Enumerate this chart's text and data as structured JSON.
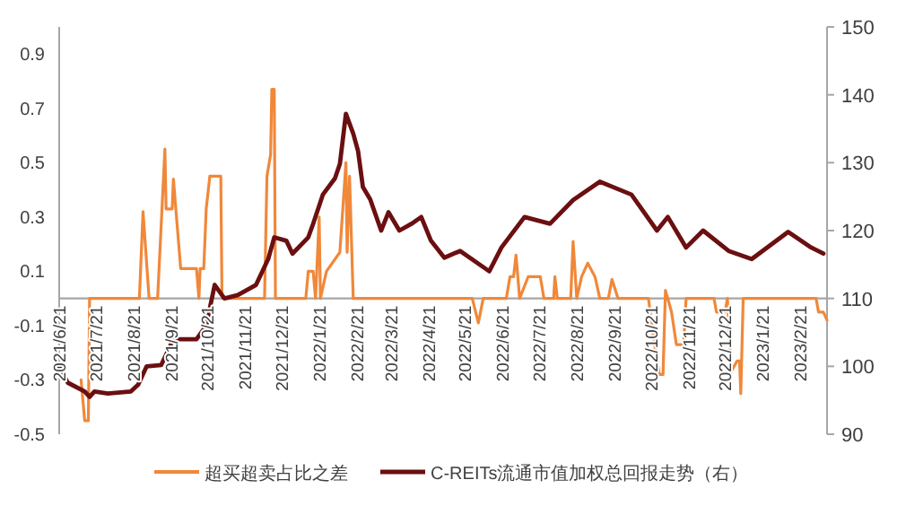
{
  "chart_data": {
    "type": "line",
    "legend": "bottom",
    "xlim": [
      "2021-06-21",
      "2023-03-15"
    ],
    "xticks": [
      {
        "value": "2021-06-21",
        "label": "2021/6/21"
      },
      {
        "value": "2021-07-21",
        "label": "2021/7/21"
      },
      {
        "value": "2021-08-21",
        "label": "2021/8/21"
      },
      {
        "value": "2021-09-21",
        "label": "2021/9/21"
      },
      {
        "value": "2021-10-21",
        "label": "2021/10/21"
      },
      {
        "value": "2021-11-21",
        "label": "2021/11/21"
      },
      {
        "value": "2021-12-21",
        "label": "2021/12/21"
      },
      {
        "value": "2022-01-21",
        "label": "2022/1/21"
      },
      {
        "value": "2022-02-21",
        "label": "2022/2/21"
      },
      {
        "value": "2022-03-21",
        "label": "2022/3/21"
      },
      {
        "value": "2022-04-21",
        "label": "2022/4/21"
      },
      {
        "value": "2022-05-21",
        "label": "2022/5/21"
      },
      {
        "value": "2022-06-21",
        "label": "2022/6/21"
      },
      {
        "value": "2022-07-21",
        "label": "2022/7/21"
      },
      {
        "value": "2022-08-21",
        "label": "2022/8/21"
      },
      {
        "value": "2022-09-21",
        "label": "2022/9/21"
      },
      {
        "value": "2022-10-21",
        "label": "2022/10/21"
      },
      {
        "value": "2022-11-21",
        "label": "2022/11/21"
      },
      {
        "value": "2022-12-21",
        "label": "2022/12/21"
      },
      {
        "value": "2023-01-21",
        "label": "2023/1/21"
      },
      {
        "value": "2023-02-21",
        "label": "2023/2/21"
      }
    ],
    "ylim": [
      -0.5,
      1.0
    ],
    "yticks": [
      -0.5,
      -0.3,
      -0.1,
      0.1,
      0.3,
      0.5,
      0.7,
      0.9
    ],
    "y2lim": [
      90,
      150
    ],
    "y2ticks": [
      90,
      100,
      110,
      120,
      130,
      140,
      150
    ],
    "series": [
      {
        "name": "超买超卖占比之差",
        "color": "#f0883a",
        "x": [
          "2021-07-09",
          "2021-07-12",
          "2021-07-15",
          "2021-07-16",
          "2021-08-26",
          "2021-08-29",
          "2021-09-03",
          "2021-09-10",
          "2021-09-16",
          "2021-09-17",
          "2021-09-22",
          "2021-09-23",
          "2021-09-25",
          "2021-09-29",
          "2021-10-12",
          "2021-10-14",
          "2021-10-15",
          "2021-10-18",
          "2021-10-20",
          "2021-10-23",
          "2021-11-01",
          "2021-11-02",
          "2021-12-07",
          "2021-12-09",
          "2021-12-12",
          "2021-12-13",
          "2021-12-15",
          "2021-12-16",
          "2022-01-10",
          "2022-01-12",
          "2022-01-16",
          "2022-01-18",
          "2022-01-21",
          "2022-01-22",
          "2022-01-27",
          "2022-02-07",
          "2022-02-12",
          "2022-02-13",
          "2022-02-15",
          "2022-02-18",
          "2022-05-27",
          "2022-06-01",
          "2022-06-05",
          "2022-06-24",
          "2022-06-27",
          "2022-06-30",
          "2022-07-02",
          "2022-07-05",
          "2022-07-12",
          "2022-07-22",
          "2022-07-25",
          "2022-08-02",
          "2022-08-03",
          "2022-08-05",
          "2022-08-16",
          "2022-08-18",
          "2022-08-21",
          "2022-08-25",
          "2022-08-30",
          "2022-09-05",
          "2022-09-09",
          "2022-09-16",
          "2022-09-19",
          "2022-09-24",
          "2022-10-19",
          "2022-10-23",
          "2022-10-28",
          "2022-10-31",
          "2022-11-02",
          "2022-11-07",
          "2022-11-11",
          "2022-11-17",
          "2022-11-19",
          "2022-12-12",
          "2022-12-14",
          "2022-12-21",
          "2022-12-23",
          "2022-12-26",
          "2022-12-31",
          "2023-01-02",
          "2023-01-03",
          "2023-01-05",
          "2023-03-06",
          "2023-03-08",
          "2023-03-12",
          "2023-03-15"
        ],
        "values": [
          -0.3,
          -0.45,
          -0.45,
          0,
          0,
          0.32,
          0,
          0,
          0.55,
          0.33,
          0.33,
          0.44,
          0.33,
          0.11,
          0.11,
          0,
          0.11,
          0.11,
          0.33,
          0.45,
          0.45,
          0,
          0,
          0.45,
          0.53,
          0.77,
          0.77,
          0,
          0,
          0.1,
          0.1,
          0,
          0.3,
          0,
          0.1,
          0.17,
          0.5,
          0.17,
          0.45,
          0,
          0,
          -0.09,
          0,
          0,
          0.08,
          0.08,
          0.16,
          0,
          0.08,
          0.08,
          0,
          0,
          0.08,
          0,
          0,
          0.21,
          0,
          0.08,
          0.13,
          0.08,
          0,
          0,
          0.07,
          0,
          0,
          -0.14,
          -0.28,
          -0.28,
          0.03,
          -0.05,
          -0.17,
          -0.17,
          0,
          0,
          -0.05,
          -0.05,
          0,
          -0.27,
          -0.23,
          -0.23,
          -0.35,
          0,
          0,
          -0.05,
          -0.05,
          -0.08
        ]
      },
      {
        "name": "C-REITs流通市值加权总回报走势（右）",
        "color": "#6b0f10",
        "axis": "y2",
        "x": [
          "2021-06-21",
          "2021-06-28",
          "2021-07-12",
          "2021-07-16",
          "2021-07-20",
          "2021-07-31",
          "2021-08-19",
          "2021-08-25",
          "2021-09-01",
          "2021-09-13",
          "2021-09-23",
          "2021-09-28",
          "2021-10-12",
          "2021-10-20",
          "2021-10-27",
          "2021-11-04",
          "2021-11-15",
          "2021-11-30",
          "2021-12-10",
          "2021-12-15",
          "2021-12-25",
          "2021-12-30",
          "2022-01-12",
          "2022-01-16",
          "2022-01-24",
          "2022-02-03",
          "2022-02-07",
          "2022-02-12",
          "2022-02-18",
          "2022-02-22",
          "2022-02-26",
          "2022-03-04",
          "2022-03-13",
          "2022-03-19",
          "2022-03-28",
          "2022-04-07",
          "2022-04-15",
          "2022-04-23",
          "2022-05-04",
          "2022-05-17",
          "2022-06-10",
          "2022-06-20",
          "2022-07-09",
          "2022-07-30",
          "2022-08-18",
          "2022-09-09",
          "2022-10-05",
          "2022-10-26",
          "2022-11-04",
          "2022-11-19",
          "2022-12-03",
          "2022-12-24",
          "2023-01-12",
          "2023-02-11",
          "2023-03-02",
          "2023-03-12"
        ],
        "values": [
          100,
          97.6,
          96.3,
          95.5,
          96.3,
          96,
          96.3,
          97.3,
          100,
          100.2,
          104,
          104,
          104,
          106,
          112,
          110,
          110.5,
          112,
          115.8,
          119,
          118.5,
          116.6,
          119,
          121,
          125.3,
          127.7,
          129.8,
          137.2,
          134.3,
          131.7,
          126.4,
          124.6,
          120,
          122.7,
          120,
          121,
          122,
          118.5,
          116,
          117,
          114,
          117.5,
          122,
          121,
          124.5,
          127.2,
          125.3,
          120,
          122,
          117.5,
          120,
          117,
          115.8,
          119.8,
          117.5,
          116.6
        ]
      }
    ]
  }
}
